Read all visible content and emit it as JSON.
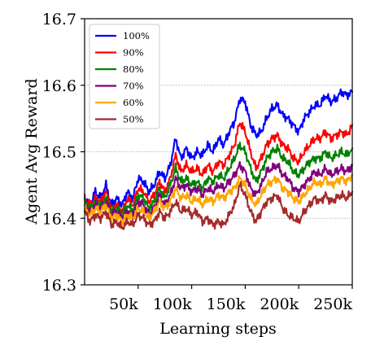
{
  "chart_data": {
    "type": "line",
    "xlabel": "Learning steps",
    "ylabel": "Agent Avg Reward",
    "xlim": [
      0,
      250000
    ],
    "ylim": [
      16.3,
      16.7
    ],
    "x_ticks": [
      {
        "value": 50000,
        "label": "50k"
      },
      {
        "value": 100000,
        "label": "100k"
      },
      {
        "value": 150000,
        "label": "150k"
      },
      {
        "value": 200000,
        "label": "200k"
      },
      {
        "value": 250000,
        "label": "250k"
      }
    ],
    "y_ticks": [
      {
        "value": 16.3,
        "label": "16.3"
      },
      {
        "value": 16.4,
        "label": "16.4"
      },
      {
        "value": 16.5,
        "label": "16.5"
      },
      {
        "value": 16.6,
        "label": "16.6"
      },
      {
        "value": 16.7,
        "label": "16.7"
      }
    ],
    "grid": {
      "horizontal": true,
      "style": "dotted",
      "at": [
        16.4,
        16.5,
        16.6
      ]
    },
    "legend_position": "top-left",
    "x": [
      0,
      5000,
      10000,
      15000,
      20000,
      25000,
      30000,
      35000,
      40000,
      45000,
      50000,
      55000,
      60000,
      65000,
      70000,
      75000,
      80000,
      85000,
      90000,
      95000,
      100000,
      105000,
      110000,
      115000,
      120000,
      125000,
      130000,
      135000,
      140000,
      145000,
      150000,
      155000,
      160000,
      165000,
      170000,
      175000,
      180000,
      185000,
      190000,
      195000,
      200000,
      205000,
      210000,
      215000,
      220000,
      225000,
      230000,
      235000,
      240000,
      245000,
      250000
    ],
    "series": [
      {
        "name": "100%",
        "color": "#0000ff",
        "values": [
          16.43,
          16.42,
          16.44,
          16.43,
          16.45,
          16.42,
          16.43,
          16.42,
          16.44,
          16.43,
          16.46,
          16.455,
          16.44,
          16.45,
          16.47,
          16.46,
          16.48,
          16.52,
          16.49,
          16.505,
          16.49,
          16.5,
          16.495,
          16.51,
          16.5,
          16.52,
          16.51,
          16.53,
          16.545,
          16.58,
          16.575,
          16.54,
          16.525,
          16.53,
          16.55,
          16.565,
          16.57,
          16.555,
          16.55,
          16.54,
          16.53,
          16.55,
          16.56,
          16.57,
          16.57,
          16.585,
          16.575,
          16.58,
          16.59,
          16.585,
          16.59
        ]
      },
      {
        "name": "90%",
        "color": "#ff0000",
        "values": [
          16.43,
          16.42,
          16.43,
          16.425,
          16.44,
          16.415,
          16.42,
          16.41,
          16.43,
          16.42,
          16.445,
          16.44,
          16.425,
          16.435,
          16.455,
          16.44,
          16.46,
          16.495,
          16.47,
          16.48,
          16.47,
          16.475,
          16.465,
          16.48,
          16.47,
          16.485,
          16.48,
          16.495,
          16.51,
          16.545,
          16.53,
          16.5,
          16.475,
          16.49,
          16.51,
          16.52,
          16.525,
          16.51,
          16.505,
          16.49,
          16.485,
          16.5,
          16.51,
          16.52,
          16.52,
          16.53,
          16.52,
          16.525,
          16.53,
          16.525,
          16.54
        ]
      },
      {
        "name": "80%",
        "color": "#008000",
        "values": [
          16.425,
          16.415,
          16.425,
          16.42,
          16.43,
          16.41,
          16.415,
          16.405,
          16.42,
          16.41,
          16.435,
          16.43,
          16.415,
          16.425,
          16.445,
          16.43,
          16.45,
          16.475,
          16.455,
          16.46,
          16.45,
          16.455,
          16.445,
          16.46,
          16.455,
          16.465,
          16.46,
          16.475,
          16.49,
          16.51,
          16.5,
          16.475,
          16.455,
          16.47,
          16.49,
          16.5,
          16.505,
          16.49,
          16.485,
          16.47,
          16.465,
          16.475,
          16.485,
          16.49,
          16.49,
          16.5,
          16.49,
          16.495,
          16.5,
          16.495,
          16.505
        ]
      },
      {
        "name": "70%",
        "color": "#800080",
        "values": [
          16.42,
          16.41,
          16.42,
          16.415,
          16.425,
          16.405,
          16.41,
          16.4,
          16.41,
          16.405,
          16.425,
          16.42,
          16.405,
          16.415,
          16.435,
          16.42,
          16.435,
          16.46,
          16.445,
          16.45,
          16.44,
          16.445,
          16.435,
          16.445,
          16.44,
          16.45,
          16.445,
          16.455,
          16.465,
          16.48,
          16.47,
          16.445,
          16.435,
          16.45,
          16.47,
          16.475,
          16.48,
          16.465,
          16.46,
          16.445,
          16.44,
          16.45,
          16.46,
          16.47,
          16.465,
          16.475,
          16.465,
          16.47,
          16.475,
          16.47,
          16.48
        ]
      },
      {
        "name": "60%",
        "color": "#ffa500",
        "values": [
          16.415,
          16.405,
          16.415,
          16.41,
          16.42,
          16.4,
          16.405,
          16.395,
          16.405,
          16.4,
          16.415,
          16.41,
          16.4,
          16.41,
          16.425,
          16.415,
          16.425,
          16.445,
          16.43,
          16.435,
          16.425,
          16.43,
          16.42,
          16.43,
          16.425,
          16.435,
          16.43,
          16.44,
          16.445,
          16.46,
          16.45,
          16.43,
          16.42,
          16.435,
          16.45,
          16.455,
          16.46,
          16.445,
          16.44,
          16.43,
          16.425,
          16.435,
          16.445,
          16.455,
          16.45,
          16.46,
          16.45,
          16.455,
          16.46,
          16.455,
          16.465
        ]
      },
      {
        "name": "50%",
        "color": "#a52a2a",
        "values": [
          16.41,
          16.395,
          16.405,
          16.4,
          16.41,
          16.39,
          16.395,
          16.385,
          16.395,
          16.39,
          16.405,
          16.4,
          16.39,
          16.395,
          16.41,
          16.4,
          16.41,
          16.425,
          16.41,
          16.415,
          16.405,
          16.41,
          16.395,
          16.4,
          16.39,
          16.395,
          16.39,
          16.405,
          16.42,
          16.45,
          16.435,
          16.41,
          16.395,
          16.41,
          16.425,
          16.43,
          16.435,
          16.415,
          16.405,
          16.4,
          16.395,
          16.41,
          16.42,
          16.43,
          16.425,
          16.435,
          16.425,
          16.43,
          16.435,
          16.43,
          16.44
        ]
      }
    ]
  }
}
